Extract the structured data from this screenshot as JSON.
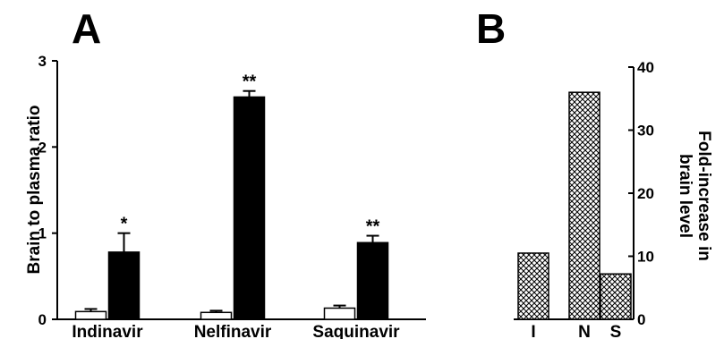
{
  "panel_letters": {
    "a": "A",
    "b": "B"
  },
  "chart_data": [
    {
      "panel": "A",
      "type": "bar",
      "ylabel": "Brain to plasma ratio",
      "ylim": [
        0,
        3
      ],
      "yticks": [
        "0",
        "1",
        "2",
        "3"
      ],
      "categories": [
        "Indinavir",
        "Nelfinavir",
        "Saquinavir"
      ],
      "series": [
        {
          "fill": "#ffffff",
          "values": [
            0.09,
            0.08,
            0.13
          ],
          "errors": [
            0.03,
            0.02,
            0.03
          ]
        },
        {
          "fill": "#000000",
          "values": [
            0.78,
            2.58,
            0.89
          ],
          "errors": [
            0.22,
            0.07,
            0.08
          ]
        }
      ],
      "significance": [
        "*",
        "**",
        "**"
      ],
      "grid": false
    },
    {
      "panel": "B",
      "type": "bar",
      "ylabel_lines": [
        "Fold-increase in",
        "brain level"
      ],
      "ylim": [
        0,
        40
      ],
      "yticks": [
        "0",
        "10",
        "20",
        "30",
        "40"
      ],
      "y_axis_side": "right",
      "categories": [
        "I",
        "N",
        "S"
      ],
      "values": [
        10.5,
        36,
        7.2
      ],
      "bar_pattern": "crosshatch",
      "grid": false
    }
  ]
}
